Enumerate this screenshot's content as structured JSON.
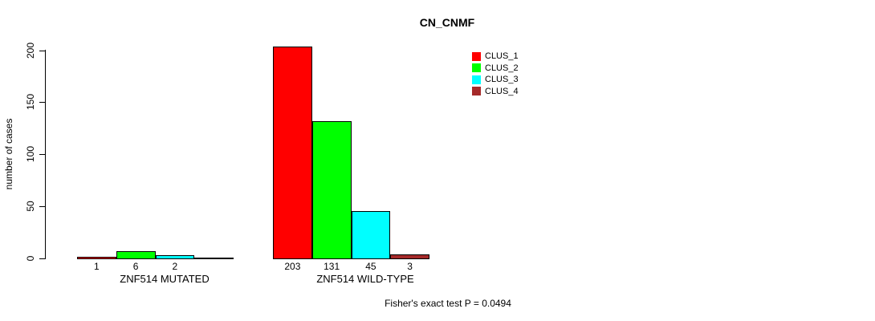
{
  "chart_data": {
    "type": "bar",
    "title": "CN_CNMF",
    "ylabel": "number of cases",
    "xlabel": "",
    "ylim": [
      0,
      200
    ],
    "yticks": [
      0,
      50,
      100,
      150,
      200
    ],
    "grid": false,
    "legend_position": "top-right",
    "categories": [
      "ZNF514 MUTATED",
      "ZNF514 WILD-TYPE"
    ],
    "series": [
      {
        "name": "CLUS_1",
        "color": "#FF0000",
        "values": [
          1,
          203
        ]
      },
      {
        "name": "CLUS_2",
        "color": "#00FF00",
        "values": [
          6,
          131
        ]
      },
      {
        "name": "CLUS_3",
        "color": "#00FFFF",
        "values": [
          2,
          45
        ]
      },
      {
        "name": "CLUS_4",
        "color": "#A52A2A",
        "values": [
          0,
          3
        ]
      }
    ],
    "bar_value_labels": [
      [
        "1",
        "6",
        "2",
        ""
      ],
      [
        "203",
        "131",
        "45",
        "3"
      ]
    ],
    "annotation": "Fisher's exact test P = 0.0494",
    "background_color": "#FFFFFF",
    "text_color": "#000000"
  }
}
